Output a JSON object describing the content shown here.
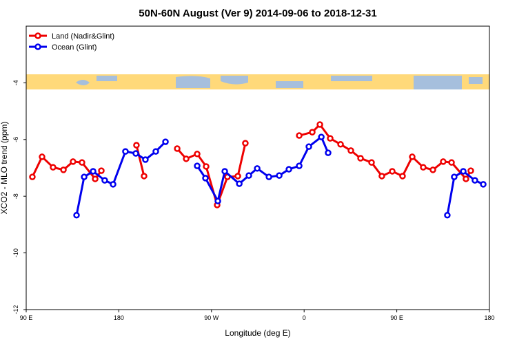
{
  "chart_data": {
    "type": "line",
    "title": "50N-60N August (Ver 9)   2014-09-06 to 2018-12-31",
    "x_label": "Longitude (deg E)",
    "y_label": "XCO2 - MLO trend (ppm)",
    "xlim": [
      90,
      540
    ],
    "ylim": [
      -12,
      -2
    ],
    "xticks": [
      {
        "value": 90,
        "label": "90 E"
      },
      {
        "value": 180,
        "label": "180"
      },
      {
        "value": 270,
        "label": "90 W"
      },
      {
        "value": 360,
        "label": "0"
      },
      {
        "value": 450,
        "label": "90 E"
      },
      {
        "value": 540,
        "label": "180"
      }
    ],
    "yticks": [
      -12,
      -10,
      -8,
      -6,
      -4
    ],
    "legend": "upper left",
    "series": [
      {
        "name": "Land (Nadir&Glint)",
        "color": "#ee0000",
        "x": [
          96.0,
          105.4,
          116.1,
          126.2,
          135.5,
          144.2,
          157.0,
          163.0,
          null,
          197.1,
          204.5,
          null,
          236.7,
          245.4,
          256.1,
          264.8,
          275.5,
          285.5,
          295.6,
          302.9,
          null,
          355.2,
          367.9,
          375.3,
          385.3,
          395.4,
          405.4,
          414.8,
          425.5,
          435.5,
          445.6,
          455.6,
          465.0,
          475.7,
          485.1,
          495.1,
          503.2,
          517.2,
          521.9
        ],
        "values": [
          -7.32,
          -6.61,
          -6.98,
          -7.07,
          -6.78,
          -6.81,
          -7.39,
          -7.1,
          null,
          -6.2,
          -7.29,
          null,
          -6.32,
          -6.68,
          -6.51,
          -6.95,
          -8.31,
          -7.32,
          -7.29,
          -6.13,
          null,
          -5.86,
          -5.74,
          -5.47,
          -5.96,
          -6.17,
          -6.39,
          -6.66,
          -6.81,
          -7.29,
          -7.12,
          -7.29,
          -6.61,
          -6.98,
          -7.07,
          -6.78,
          -6.81,
          -7.39,
          -7.1
        ]
      },
      {
        "name": "Ocean (Glint)",
        "color": "#0000ee",
        "x": [
          138.9,
          146.3,
          155.0,
          166.3,
          174.4,
          186.4,
          196.5,
          205.8,
          215.9,
          225.3,
          null,
          256.1,
          264.1,
          276.2,
          282.9,
          297.0,
          306.3,
          314.4,
          325.8,
          335.8,
          345.2,
          355.2,
          364.6,
          376.7,
          383.3,
          null,
          499.1,
          505.8,
          514.6,
          525.9,
          534.0
        ],
        "values": [
          -8.67,
          -7.32,
          -7.12,
          -7.44,
          -7.58,
          -6.42,
          -6.49,
          -6.71,
          -6.42,
          -6.08,
          null,
          -6.93,
          -7.36,
          -8.17,
          -7.12,
          -7.56,
          -7.27,
          -7.02,
          -7.32,
          -7.27,
          -7.05,
          -6.93,
          -6.25,
          -5.91,
          -6.47,
          null,
          -8.67,
          -7.32,
          -7.12,
          -7.44,
          -7.58
        ]
      }
    ]
  }
}
